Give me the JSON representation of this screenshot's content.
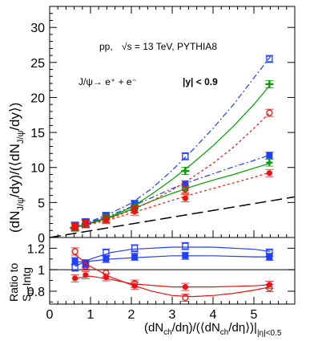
{
  "chart_data": [
    {
      "type": "scatter",
      "title": "",
      "annotations": {
        "line1": "pp,",
        "sqrt_label": "√s = 13 TeV, PYTHIA8",
        "decay": "J/ψ→ e⁺ + e⁻",
        "rapidity": "|y| < 0.9"
      },
      "ylabel": {
        "main": "(dN",
        "sub1": "J/ψ",
        "mid": "/dy)/(⟨dN",
        "sub2": "J/ψ",
        "end": "/dy⟩)"
      },
      "xlim": [
        0,
        6
      ],
      "ylim": [
        0,
        33
      ],
      "yticks": [
        "0",
        "5",
        "10",
        "15",
        "20",
        "25",
        "30"
      ],
      "grid": false,
      "series": [
        {
          "color": "#1f3fff",
          "marker": "open-square",
          "line": "dashdot",
          "x": [
            0.62,
            0.88,
            1.38,
            2.08,
            3.32,
            5.38
          ],
          "y": [
            1.7,
            2.2,
            3.1,
            4.8,
            11.6,
            25.5
          ],
          "fit": [
            [
              0.5,
              1.4
            ],
            [
              1,
              2.3
            ],
            [
              1.5,
              3.5
            ],
            [
              2,
              4.9
            ],
            [
              2.5,
              7.0
            ],
            [
              3,
              9.6
            ],
            [
              3.5,
              12.5
            ],
            [
              4,
              15.6
            ],
            [
              4.5,
              19.0
            ],
            [
              5,
              22.8
            ],
            [
              5.4,
              25.8
            ]
          ]
        },
        {
          "color": "#1f3fff",
          "marker": "filled-square",
          "line": "dashdot",
          "x": [
            0.62,
            0.88,
            1.38,
            2.08,
            3.32,
            5.38
          ],
          "y": [
            1.6,
            2.1,
            3.0,
            4.6,
            7.6,
            11.7
          ],
          "fit": [
            [
              0.5,
              1.4
            ],
            [
              1,
              2.2
            ],
            [
              1.5,
              3.2
            ],
            [
              2,
              4.4
            ],
            [
              2.5,
              5.7
            ],
            [
              3,
              7.0
            ],
            [
              3.5,
              8.1
            ],
            [
              4,
              9.1
            ],
            [
              4.5,
              10.1
            ],
            [
              5,
              11.0
            ],
            [
              5.4,
              11.8
            ]
          ]
        },
        {
          "color": "#00a000",
          "marker": "plus",
          "line": "solid",
          "x": [
            0.62,
            0.88,
            1.38,
            2.08,
            3.32,
            5.38
          ],
          "y": [
            1.5,
            2.0,
            2.8,
            4.3,
            9.5,
            21.9
          ],
          "fit": [
            [
              0.5,
              1.3
            ],
            [
              1,
              2.1
            ],
            [
              1.5,
              3.0
            ],
            [
              2,
              4.3
            ],
            [
              2.5,
              6.2
            ],
            [
              3,
              8.3
            ],
            [
              3.5,
              10.6
            ],
            [
              4,
              13.1
            ],
            [
              4.5,
              15.9
            ],
            [
              5,
              19.0
            ],
            [
              5.4,
              21.8
            ]
          ]
        },
        {
          "color": "#00a000",
          "marker": "plus-small",
          "line": "solid",
          "x": [
            0.62,
            0.88,
            1.38,
            2.08,
            3.32,
            5.38
          ],
          "y": [
            1.4,
            1.9,
            2.6,
            4.1,
            6.8,
            10.7
          ],
          "fit": [
            [
              0.5,
              1.3
            ],
            [
              1,
              2.0
            ],
            [
              1.5,
              2.9
            ],
            [
              2,
              4.0
            ],
            [
              2.5,
              5.2
            ],
            [
              3,
              6.3
            ],
            [
              3.5,
              7.3
            ],
            [
              4,
              8.2
            ],
            [
              4.5,
              9.0
            ],
            [
              5,
              9.9
            ],
            [
              5.4,
              10.6
            ]
          ]
        },
        {
          "color": "#ee1111",
          "marker": "open-circle",
          "line": "dotted",
          "x": [
            0.62,
            0.88,
            1.38,
            2.08,
            3.32,
            5.38
          ],
          "y": [
            1.6,
            2.0,
            2.7,
            4.0,
            6.9,
            17.8
          ],
          "fit": [
            [
              0.5,
              1.3
            ],
            [
              1,
              2.0
            ],
            [
              1.5,
              2.8
            ],
            [
              2,
              3.9
            ],
            [
              2.5,
              5.2
            ],
            [
              3,
              6.8
            ],
            [
              3.5,
              8.6
            ],
            [
              4,
              10.6
            ],
            [
              4.5,
              12.9
            ],
            [
              5,
              15.6
            ],
            [
              5.4,
              17.9
            ]
          ]
        },
        {
          "color": "#ee1111",
          "marker": "filled-circle",
          "line": "dotted",
          "x": [
            0.62,
            0.88,
            1.38,
            2.08,
            3.32,
            5.38
          ],
          "y": [
            1.5,
            1.9,
            2.5,
            3.7,
            5.6,
            9.2
          ],
          "fit": [
            [
              0.5,
              1.3
            ],
            [
              1,
              1.9
            ],
            [
              1.5,
              2.6
            ],
            [
              2,
              3.5
            ],
            [
              2.5,
              4.4
            ],
            [
              3,
              5.3
            ],
            [
              3.5,
              6.2
            ],
            [
              4,
              7.0
            ],
            [
              4.5,
              7.8
            ],
            [
              5,
              8.6
            ],
            [
              5.4,
              9.3
            ]
          ]
        }
      ],
      "reference_line": {
        "style": "long-dash",
        "color": "#000000",
        "from": [
          0,
          0
        ],
        "to": [
          6,
          5.8
        ]
      }
    },
    {
      "type": "scatter",
      "ylabel": {
        "l1": "Ratio to",
        "l2a": "S",
        "l2sub": "0",
        "l2b": "-Intg"
      },
      "xlabel": {
        "a": "(dN",
        "s1": "ch",
        "b": "/dη)/(⟨dN",
        "s2": "ch",
        "c": "/dη⟩)|",
        "s3": "|η|<0.5"
      },
      "xlim": [
        0,
        6
      ],
      "ylim": [
        0.68,
        1.3
      ],
      "xticks": [
        "0",
        "1",
        "2",
        "3",
        "4",
        "5"
      ],
      "yticks": [
        "0.8",
        "1",
        "1.2"
      ],
      "unity_line": 1.0,
      "series": [
        {
          "color": "#1f3fff",
          "marker": "open-square",
          "x": [
            0.62,
            0.88,
            1.38,
            2.08,
            3.32,
            5.38
          ],
          "y": [
            1.02,
            1.06,
            1.16,
            1.2,
            1.22,
            1.16
          ],
          "fit": [
            [
              0.62,
              1.03
            ],
            [
              1,
              1.1
            ],
            [
              1.5,
              1.16
            ],
            [
              2,
              1.19
            ],
            [
              3,
              1.21
            ],
            [
              4,
              1.21
            ],
            [
              5,
              1.19
            ],
            [
              5.4,
              1.17
            ]
          ]
        },
        {
          "color": "#1f3fff",
          "marker": "filled-square",
          "x": [
            0.62,
            0.88,
            1.38,
            2.08,
            3.32,
            5.38
          ],
          "y": [
            1.08,
            1.05,
            1.1,
            1.12,
            1.13,
            1.12
          ],
          "fit": [
            [
              0.62,
              1.07
            ],
            [
              1,
              1.08
            ],
            [
              1.5,
              1.1
            ],
            [
              2,
              1.11
            ],
            [
              3,
              1.13
            ],
            [
              4,
              1.13
            ],
            [
              5,
              1.12
            ],
            [
              5.4,
              1.12
            ]
          ]
        },
        {
          "color": "#ee1111",
          "marker": "open-circle",
          "x": [
            0.62,
            0.88,
            1.38,
            2.08,
            3.32,
            5.38
          ],
          "y": [
            1.17,
            1.03,
            0.97,
            0.87,
            0.74,
            0.83
          ],
          "fit": [
            [
              0.62,
              1.14
            ],
            [
              1,
              1.03
            ],
            [
              1.5,
              0.93
            ],
            [
              2,
              0.86
            ],
            [
              2.5,
              0.8
            ],
            [
              3,
              0.76
            ],
            [
              3.5,
              0.75
            ],
            [
              4,
              0.76
            ],
            [
              4.5,
              0.78
            ],
            [
              5,
              0.81
            ],
            [
              5.4,
              0.84
            ]
          ]
        },
        {
          "color": "#ee1111",
          "marker": "filled-circle",
          "x": [
            0.62,
            0.88,
            1.38,
            2.08,
            3.32,
            5.38
          ],
          "y": [
            0.92,
            0.95,
            0.93,
            0.85,
            0.84,
            0.86
          ],
          "fit": [
            [
              0.62,
              0.92
            ],
            [
              1,
              0.94
            ],
            [
              1.5,
              0.91
            ],
            [
              2,
              0.87
            ],
            [
              3,
              0.84
            ],
            [
              4,
              0.84
            ],
            [
              5,
              0.85
            ],
            [
              5.4,
              0.86
            ]
          ]
        }
      ]
    }
  ]
}
